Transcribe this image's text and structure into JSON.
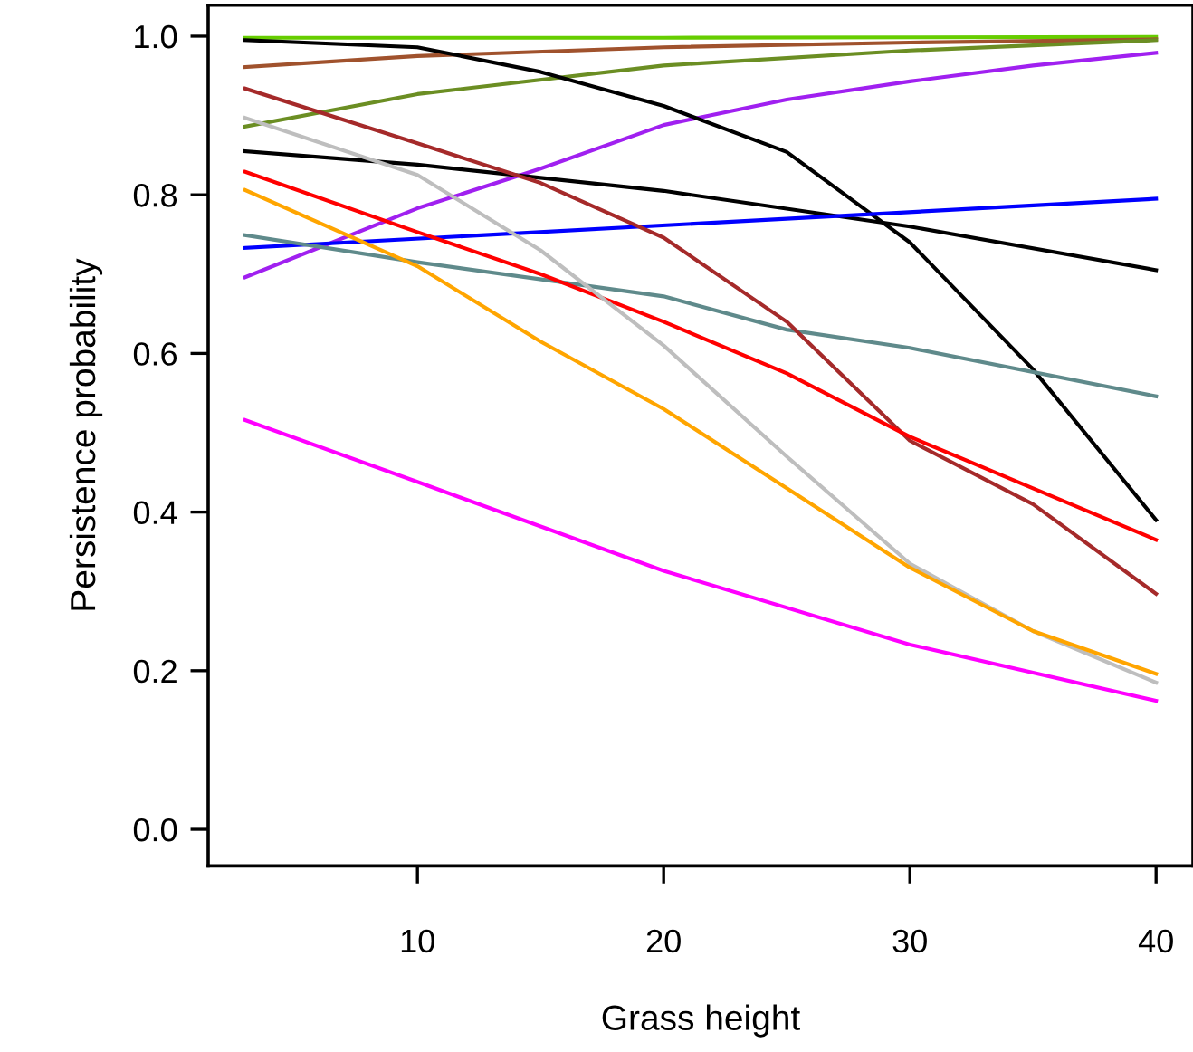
{
  "chart_data": {
    "type": "line",
    "xlabel": "Grass height",
    "ylabel": "Persistence probability",
    "xlim": [
      1.5,
      41.5
    ],
    "ylim": [
      -0.046,
      1.039
    ],
    "xticks": [
      10,
      20,
      30,
      40
    ],
    "yticks": [
      {
        "value": 0,
        "label": "0.0"
      },
      {
        "value": 0.2,
        "label": "0.2"
      },
      {
        "value": 0.4,
        "label": "0.4"
      },
      {
        "value": 0.6,
        "label": "0.6"
      },
      {
        "value": 0.8,
        "label": "0.8"
      },
      {
        "value": 1,
        "label": "1.0"
      }
    ],
    "grid": false,
    "legend": false,
    "marker": "none",
    "line_style": "solid",
    "series": [
      {
        "color": "#66cd00",
        "x": [
          3,
          20,
          40
        ],
        "values": [
          0.998,
          0.998,
          0.999
        ]
      },
      {
        "color": "#a0522d",
        "x": [
          3,
          10,
          20,
          30,
          40
        ],
        "values": [
          0.961,
          0.975,
          0.986,
          0.992,
          0.996
        ]
      },
      {
        "color": "#6b8e23",
        "x": [
          3,
          10,
          20,
          30,
          40
        ],
        "values": [
          0.886,
          0.927,
          0.963,
          0.982,
          0.995
        ]
      },
      {
        "color": "#a020f0",
        "x": [
          3,
          10,
          15,
          20,
          25,
          30,
          35,
          40
        ],
        "values": [
          0.696,
          0.783,
          0.833,
          0.888,
          0.92,
          0.943,
          0.963,
          0.979
        ]
      },
      {
        "color": "#000000",
        "x": [
          3,
          10,
          15,
          20,
          25,
          30,
          35,
          40
        ],
        "values": [
          0.995,
          0.986,
          0.955,
          0.912,
          0.854,
          0.74,
          0.58,
          0.39
        ]
      },
      {
        "color": "#000000",
        "x": [
          3,
          10,
          20,
          30,
          40
        ],
        "values": [
          0.855,
          0.838,
          0.805,
          0.76,
          0.705
        ]
      },
      {
        "color": "#0000ff",
        "x": [
          3,
          40
        ],
        "values": [
          0.733,
          0.795
        ]
      },
      {
        "color": "#5f8a8b",
        "x": [
          3,
          10,
          20,
          25,
          30,
          40
        ],
        "values": [
          0.749,
          0.715,
          0.672,
          0.63,
          0.607,
          0.546
        ]
      },
      {
        "color": "#a52a2a",
        "x": [
          3,
          10,
          15,
          20,
          25,
          30,
          35,
          40
        ],
        "values": [
          0.934,
          0.865,
          0.815,
          0.746,
          0.64,
          0.49,
          0.41,
          0.297
        ]
      },
      {
        "color": "#ff0000",
        "x": [
          3,
          10,
          15,
          20,
          25,
          30,
          35,
          40
        ],
        "values": [
          0.829,
          0.753,
          0.7,
          0.64,
          0.575,
          0.495,
          0.43,
          0.365
        ]
      },
      {
        "color": "#bebebe",
        "x": [
          3,
          10,
          15,
          20,
          25,
          30,
          35,
          40
        ],
        "values": [
          0.897,
          0.825,
          0.73,
          0.61,
          0.47,
          0.335,
          0.25,
          0.185
        ]
      },
      {
        "color": "#ffa500",
        "x": [
          3,
          10,
          15,
          20,
          25,
          30,
          35,
          40
        ],
        "values": [
          0.806,
          0.71,
          0.615,
          0.53,
          0.43,
          0.33,
          0.25,
          0.196
        ]
      },
      {
        "color": "#ff00ff",
        "x": [
          3,
          10,
          20,
          30,
          40
        ],
        "values": [
          0.516,
          0.438,
          0.326,
          0.233,
          0.162
        ]
      }
    ]
  }
}
